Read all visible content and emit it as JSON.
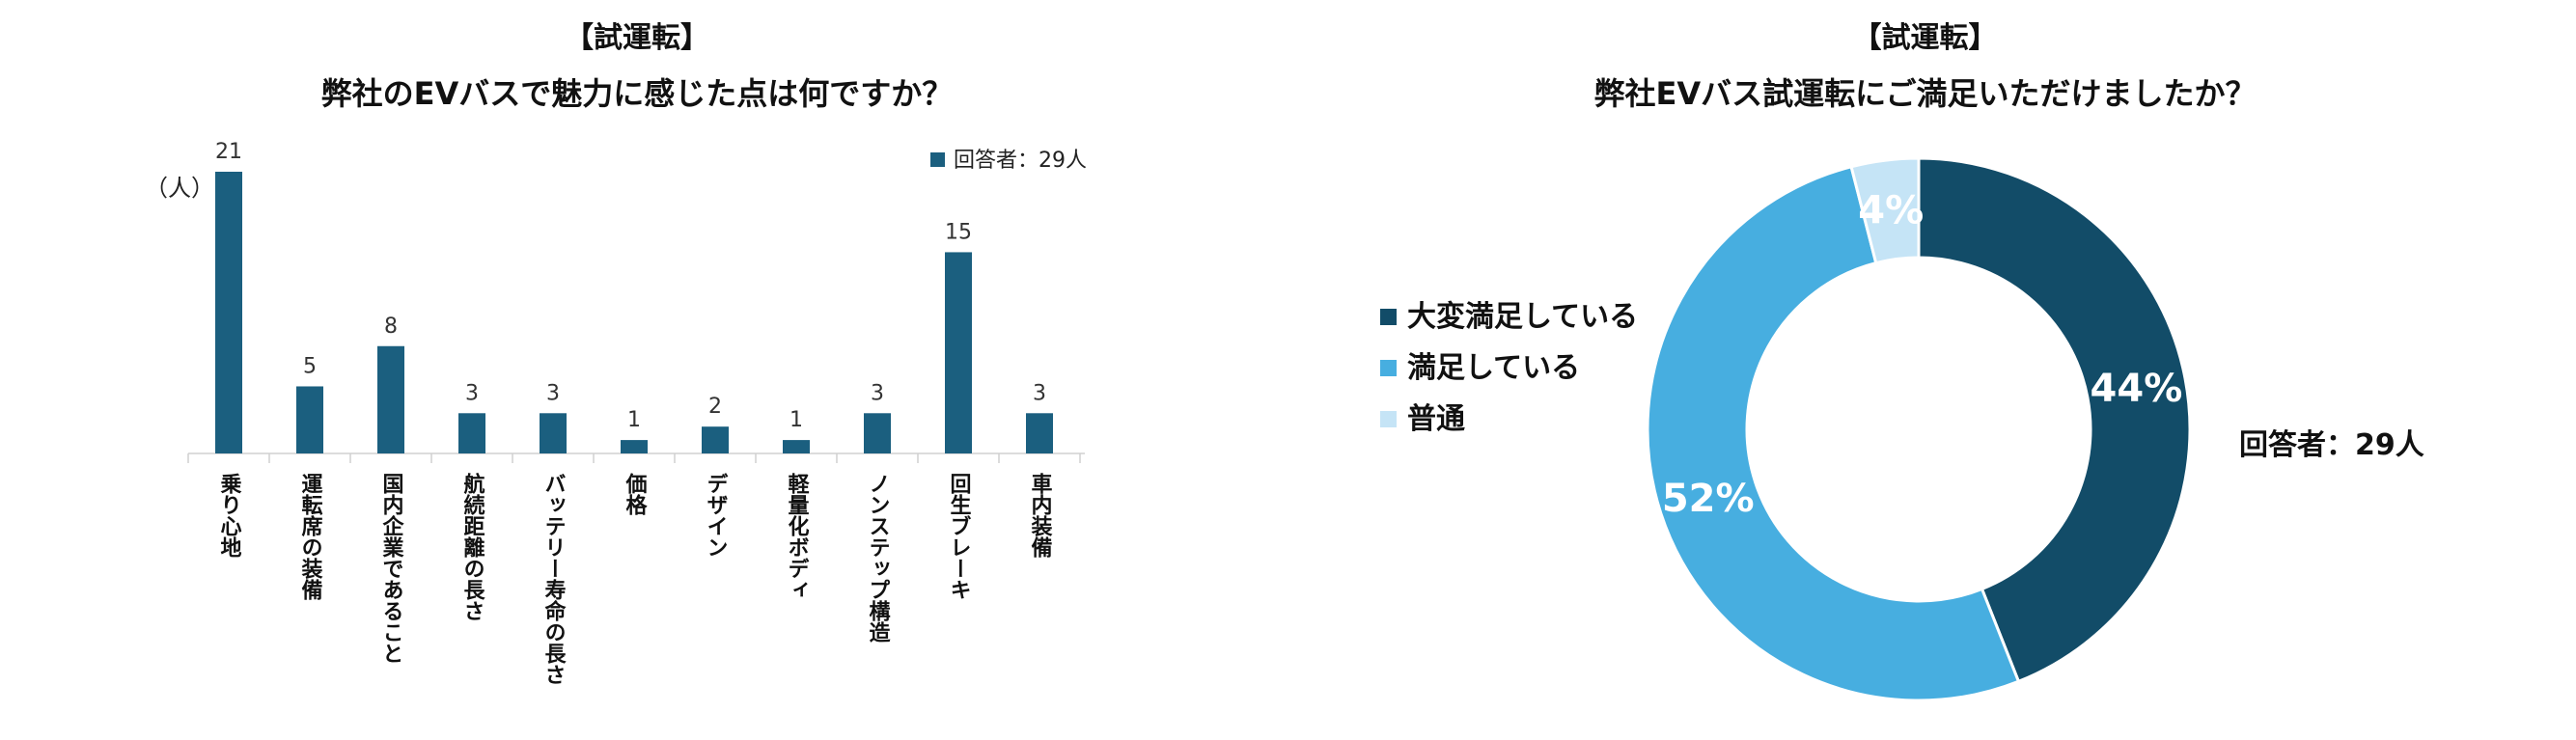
{
  "left_chart": {
    "title_line1": "【試運転】",
    "title_line2": "弊社のEVバスで魅力に感じた点は何ですか？",
    "unit_label": "（人）",
    "legend_label": "回答者：29人",
    "color": "#1b5f7f"
  },
  "right_chart": {
    "title_line1": "【試運転】",
    "title_line2": "弊社EVバス試運転にご満足いただけましたか？",
    "respondents_label": "回答者：29人"
  },
  "chart_data": [
    {
      "type": "bar",
      "title": "【試運転】 弊社のEVバスで魅力に感じた点は何ですか？",
      "ylabel": "（人）",
      "categories": [
        "乗り心地",
        "運転席の装備",
        "国内企業であること",
        "航続距離の長さ",
        "バッテリー寿命の長さ",
        "価格",
        "デザイン",
        "軽量化ボディ",
        "ノンステップ構造",
        "回生ブレーキ",
        "車内装備"
      ],
      "series": [
        {
          "name": "回答者：29人",
          "values": [
            21,
            5,
            8,
            3,
            3,
            1,
            2,
            1,
            3,
            15,
            3
          ]
        }
      ],
      "ylim": [
        0,
        21
      ],
      "grid": false,
      "legend": "top-right",
      "data_labels": true
    },
    {
      "type": "pie",
      "style": "donut",
      "title": "【試運転】 弊社EVバス試運転にご満足いただけましたか？",
      "labels": [
        "大変満足している",
        "満足している",
        "普通"
      ],
      "values": [
        44,
        52,
        4
      ],
      "value_labels": [
        "44%",
        "52%",
        "4%"
      ],
      "colors": [
        "#124c68",
        "#47aee0",
        "#c5e4f6"
      ],
      "legend": "left",
      "annotation": "回答者：29人"
    }
  ]
}
